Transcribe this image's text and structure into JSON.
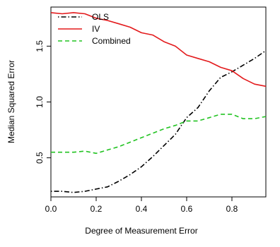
{
  "chart_data": {
    "type": "line",
    "xlabel": "Degree of Measurement Error",
    "ylabel": "Median Squared Error",
    "xlim": [
      0,
      0.95
    ],
    "ylim": [
      0.15,
      1.85
    ],
    "x_ticks": [
      0.0,
      0.2,
      0.4,
      0.6,
      0.8
    ],
    "x_tick_labels": [
      "0.0",
      "0.2",
      "0.4",
      "0.6",
      "0.8"
    ],
    "y_ticks": [
      0.5,
      1.0,
      1.5
    ],
    "y_tick_labels": [
      "0.5",
      "1.0",
      "1.5"
    ],
    "grid": false,
    "legend_position": "top-left",
    "series": [
      {
        "name": "OLS",
        "color": "#000000",
        "line_style": "dot-dash",
        "x": [
          0.0,
          0.05,
          0.1,
          0.15,
          0.2,
          0.25,
          0.3,
          0.35,
          0.4,
          0.45,
          0.5,
          0.55,
          0.6,
          0.65,
          0.7,
          0.75,
          0.8,
          0.85,
          0.9,
          0.95
        ],
        "values": [
          0.2,
          0.2,
          0.19,
          0.2,
          0.22,
          0.24,
          0.29,
          0.35,
          0.42,
          0.51,
          0.61,
          0.71,
          0.86,
          0.95,
          1.1,
          1.22,
          1.27,
          1.33,
          1.39,
          1.46
        ]
      },
      {
        "name": "IV",
        "color": "#e31a1c",
        "line_style": "solid",
        "x": [
          0.0,
          0.05,
          0.1,
          0.15,
          0.2,
          0.25,
          0.3,
          0.35,
          0.4,
          0.45,
          0.5,
          0.55,
          0.6,
          0.65,
          0.7,
          0.75,
          0.8,
          0.85,
          0.9,
          0.95
        ],
        "values": [
          1.8,
          1.79,
          1.8,
          1.79,
          1.75,
          1.73,
          1.7,
          1.67,
          1.62,
          1.6,
          1.54,
          1.5,
          1.42,
          1.39,
          1.36,
          1.31,
          1.28,
          1.21,
          1.16,
          1.14
        ]
      },
      {
        "name": "Combined",
        "color": "#22c322",
        "line_style": "dashed",
        "x": [
          0.0,
          0.05,
          0.1,
          0.15,
          0.2,
          0.25,
          0.3,
          0.35,
          0.4,
          0.45,
          0.5,
          0.55,
          0.6,
          0.65,
          0.7,
          0.75,
          0.8,
          0.85,
          0.9,
          0.95
        ],
        "values": [
          0.55,
          0.55,
          0.55,
          0.56,
          0.54,
          0.57,
          0.6,
          0.64,
          0.68,
          0.72,
          0.76,
          0.79,
          0.83,
          0.83,
          0.86,
          0.89,
          0.89,
          0.85,
          0.85,
          0.87
        ]
      }
    ]
  }
}
